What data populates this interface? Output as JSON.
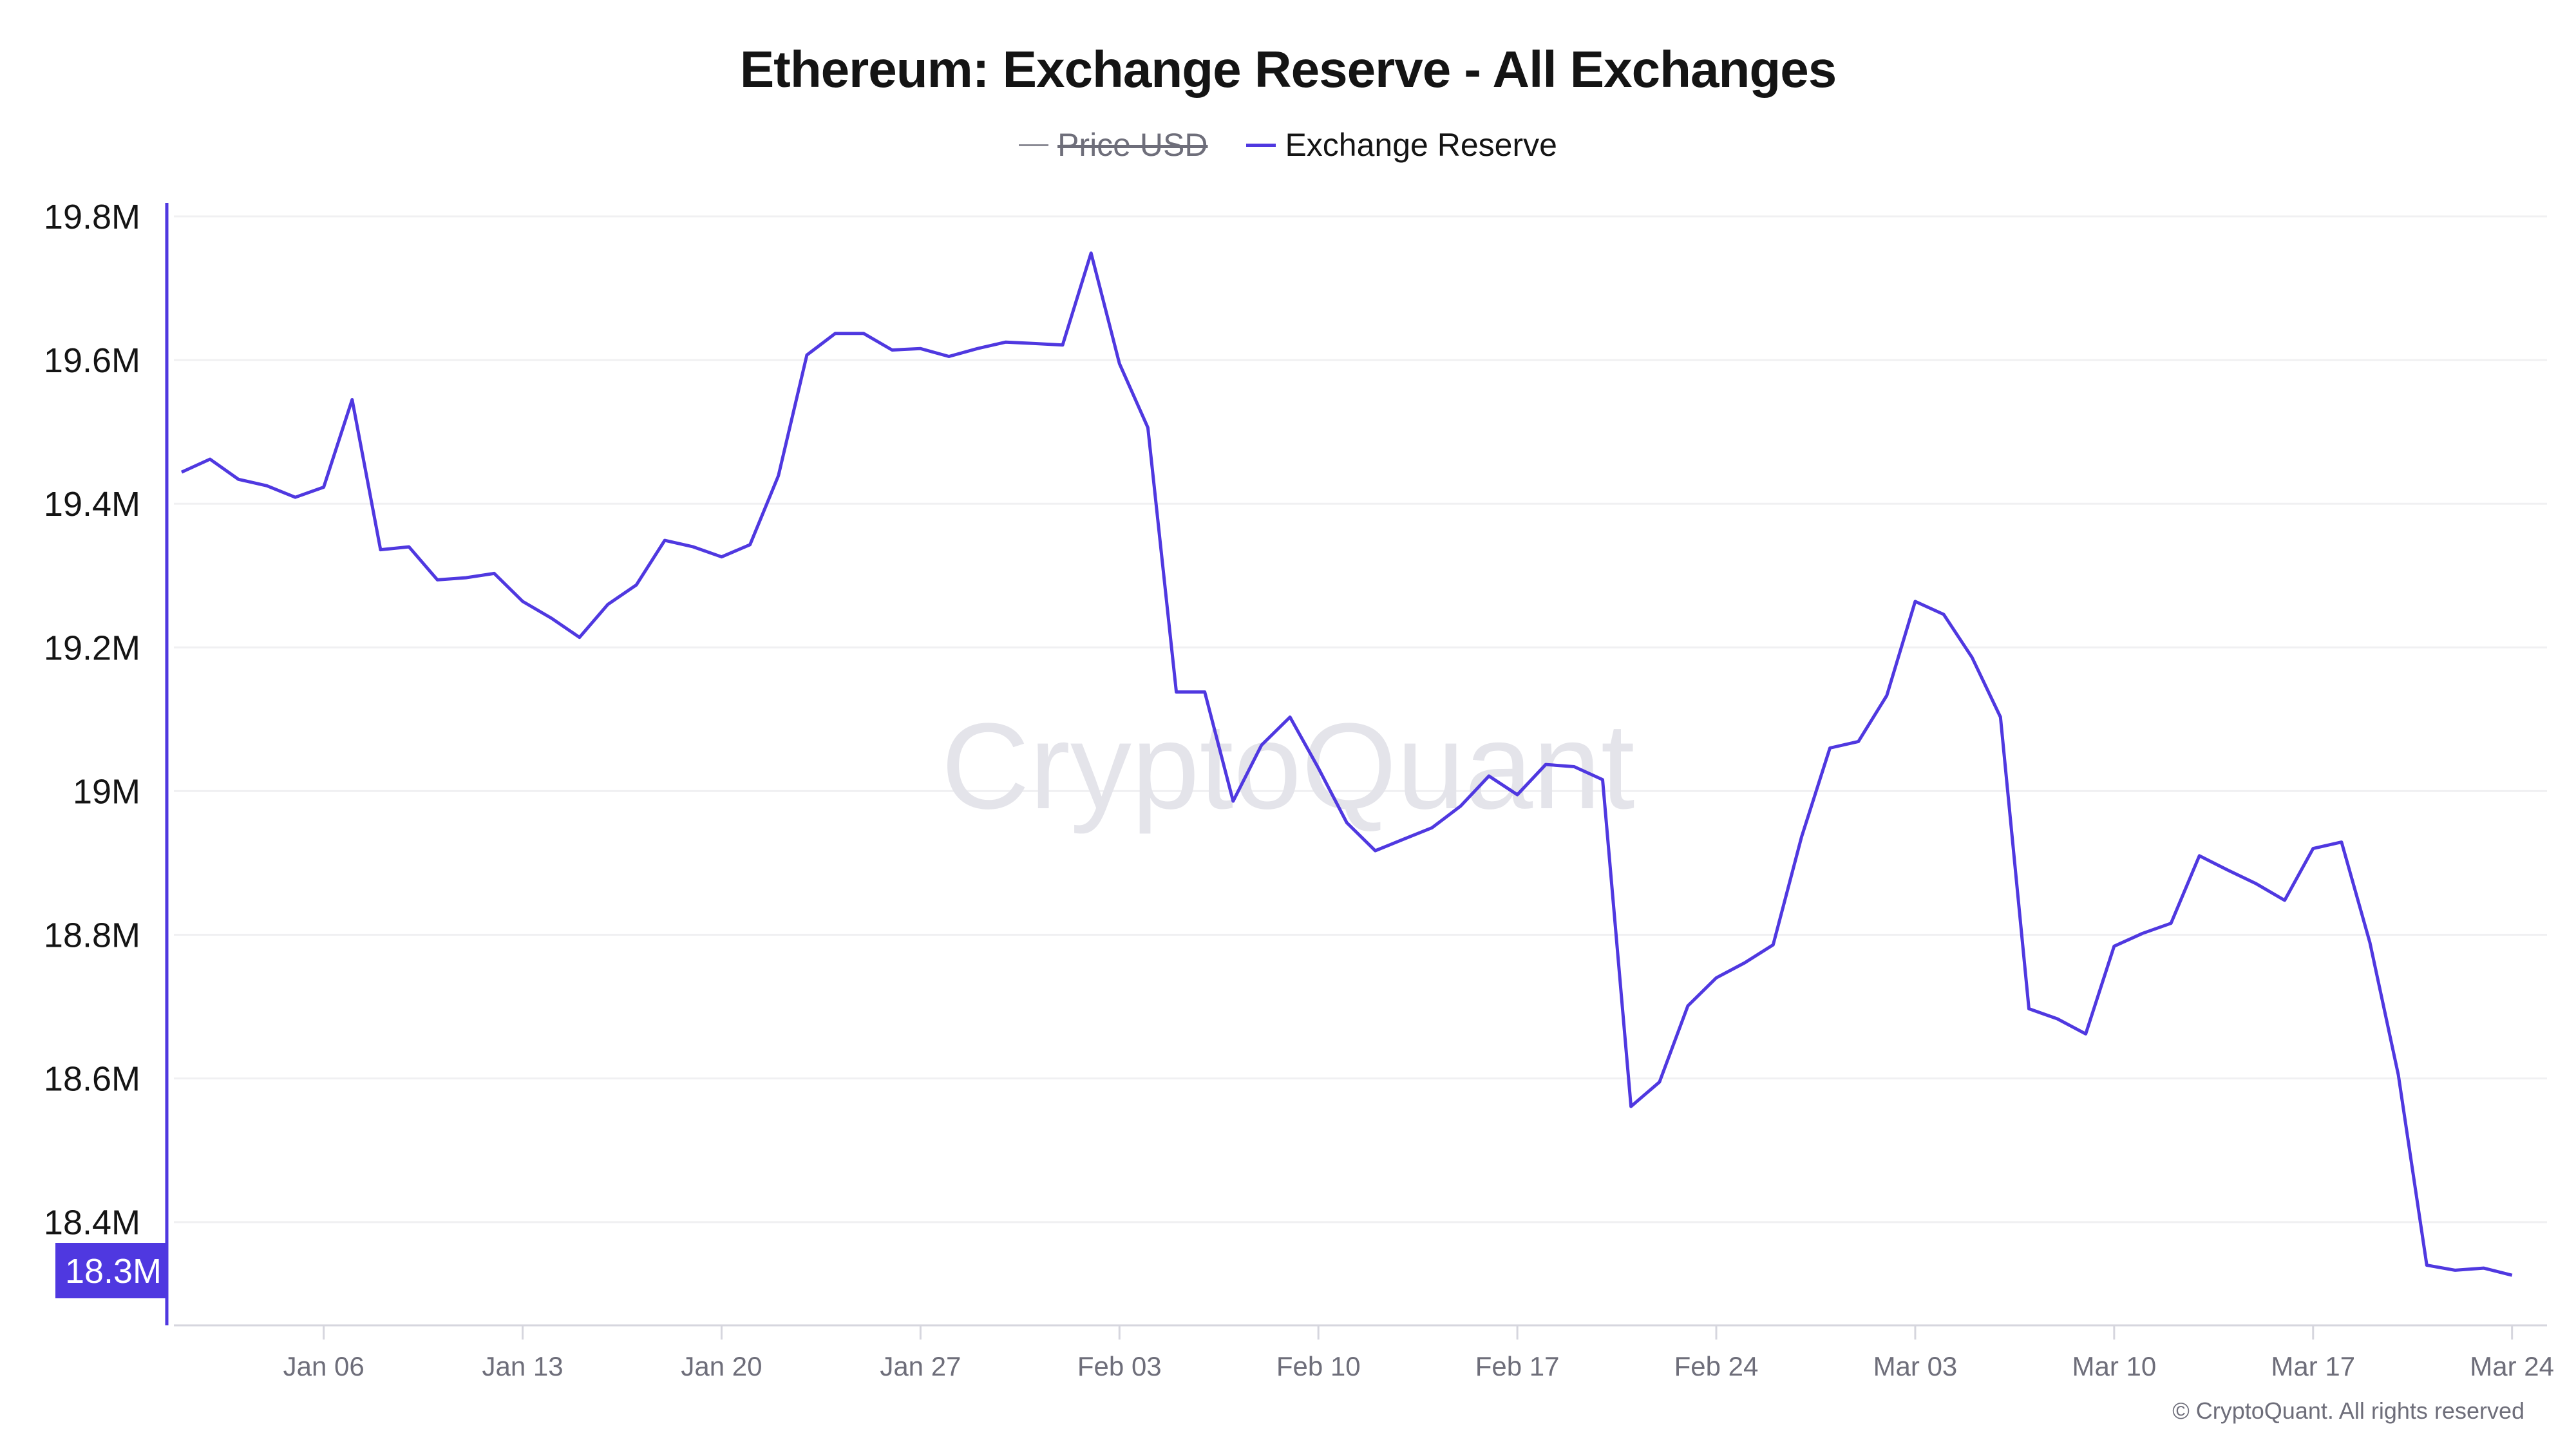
{
  "title": "Ethereum: Exchange Reserve - All Exchanges",
  "legend": [
    {
      "label": "Price USD",
      "color": "#8a8a94",
      "hidden": true
    },
    {
      "label": "Exchange Reserve",
      "color": "#4f38e0",
      "hidden": false
    }
  ],
  "watermark": "CryptoQuant",
  "copyright": "© CryptoQuant. All rights reserved",
  "current_value_badge": "18.3M",
  "colors": {
    "series": "#4f38e0",
    "grid": "#f0f0f2",
    "axis_text": "#141414",
    "xtick_text": "#6e6e7a"
  },
  "chart_data": {
    "type": "line",
    "title": "Ethereum: Exchange Reserve - All Exchanges",
    "xlabel": "",
    "ylabel": "",
    "ylim": [
      18.255,
      19.85
    ],
    "grid": true,
    "legend_position": "top-center",
    "y_ticks": [
      "19.8M",
      "19.6M",
      "19.4M",
      "19.2M",
      "19M",
      "18.8M",
      "18.6M",
      "18.4M"
    ],
    "y_tick_values": [
      19.8,
      19.6,
      19.4,
      19.2,
      19.0,
      18.8,
      18.6,
      18.4
    ],
    "x_ticks": [
      "Jan 06",
      "Jan 13",
      "Jan 20",
      "Jan 27",
      "Feb 03",
      "Feb 10",
      "Feb 17",
      "Feb 24",
      "Mar 03",
      "Mar 10",
      "Mar 17",
      "Mar 24"
    ],
    "x_tick_day_index": [
      5,
      12,
      19,
      26,
      33,
      40,
      47,
      54,
      61,
      68,
      75,
      82
    ],
    "x": [
      "Jan 01",
      "Jan 02",
      "Jan 03",
      "Jan 04",
      "Jan 05",
      "Jan 06",
      "Jan 07",
      "Jan 08",
      "Jan 09",
      "Jan 10",
      "Jan 11",
      "Jan 12",
      "Jan 13",
      "Jan 14",
      "Jan 15",
      "Jan 16",
      "Jan 17",
      "Jan 18",
      "Jan 19",
      "Jan 20",
      "Jan 21",
      "Jan 22",
      "Jan 23",
      "Jan 24",
      "Jan 25",
      "Jan 26",
      "Jan 27",
      "Jan 28",
      "Jan 29",
      "Jan 30",
      "Jan 31",
      "Feb 01",
      "Feb 02",
      "Feb 03",
      "Feb 04",
      "Feb 05",
      "Feb 06",
      "Feb 07",
      "Feb 08",
      "Feb 09",
      "Feb 10",
      "Feb 11",
      "Feb 12",
      "Feb 13",
      "Feb 14",
      "Feb 15",
      "Feb 16",
      "Feb 17",
      "Feb 18",
      "Feb 19",
      "Feb 20",
      "Feb 21",
      "Feb 22",
      "Feb 23",
      "Feb 24",
      "Feb 25",
      "Feb 26",
      "Feb 27",
      "Feb 28",
      "Mar 01",
      "Mar 02",
      "Mar 03",
      "Mar 04",
      "Mar 05",
      "Mar 06",
      "Mar 07",
      "Mar 08",
      "Mar 09",
      "Mar 10",
      "Mar 11",
      "Mar 12",
      "Mar 13",
      "Mar 14",
      "Mar 15",
      "Mar 16",
      "Mar 17",
      "Mar 18",
      "Mar 19",
      "Mar 20",
      "Mar 21",
      "Mar 22",
      "Mar 23",
      "Mar 24"
    ],
    "series": [
      {
        "name": "Exchange Reserve",
        "unit": "M ETH",
        "values": [
          19.444,
          19.462,
          19.434,
          19.425,
          19.409,
          19.423,
          19.545,
          19.336,
          19.34,
          19.294,
          19.297,
          19.303,
          19.264,
          19.241,
          19.214,
          19.26,
          19.287,
          19.349,
          19.34,
          19.326,
          19.343,
          19.439,
          19.607,
          19.637,
          19.637,
          19.614,
          19.616,
          19.605,
          19.616,
          19.625,
          19.623,
          19.621,
          19.749,
          19.595,
          19.506,
          19.138,
          19.138,
          18.986,
          19.064,
          19.103,
          19.032,
          18.956,
          18.917,
          18.933,
          18.949,
          18.979,
          19.021,
          18.995,
          19.037,
          19.034,
          19.016,
          18.561,
          18.595,
          18.701,
          18.74,
          18.761,
          18.786,
          18.936,
          19.06,
          19.069,
          19.133,
          19.264,
          19.246,
          19.186,
          19.103,
          18.697,
          18.683,
          18.662,
          18.784,
          18.802,
          18.816,
          18.91,
          18.89,
          18.871,
          18.848,
          18.92,
          18.929,
          18.789,
          18.605,
          18.34,
          18.333,
          18.336,
          18.326
        ]
      },
      {
        "name": "Price USD",
        "hidden": true,
        "values": []
      }
    ]
  }
}
